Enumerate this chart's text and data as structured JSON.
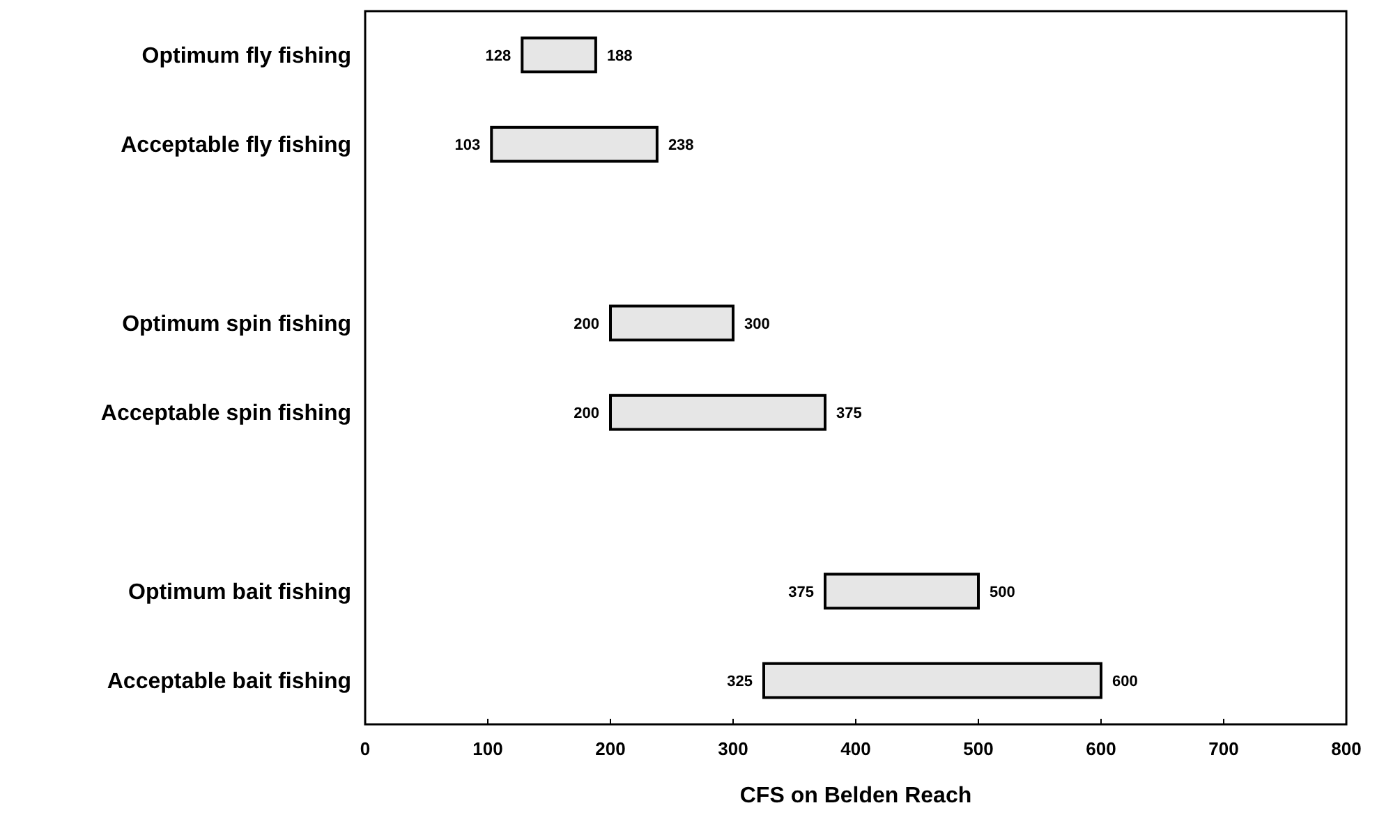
{
  "chart_data": {
    "type": "bar",
    "orientation": "horizontal",
    "xlabel": "CFS on Belden Reach",
    "categories": [
      "Optimum fly fishing",
      "Acceptable fly fishing",
      null,
      "Optimum spin fishing",
      "Acceptable spin fishing",
      null,
      "Optimum bait fishing",
      "Acceptable bait fishing"
    ],
    "base": [
      128,
      103,
      null,
      200,
      200,
      null,
      375,
      325
    ],
    "values": [
      60,
      135,
      null,
      100,
      175,
      null,
      125,
      275
    ],
    "color": "#e6e6e6",
    "xlim": [
      0,
      800
    ],
    "xticks": [
      0,
      100,
      200,
      300,
      400,
      500,
      600,
      700,
      800
    ],
    "grid": false,
    "annotations": [
      {
        "text": "128",
        "x": 128,
        "y": "Optimum fly fishing"
      },
      {
        "text": "188",
        "x": 188,
        "y": "Optimum fly fishing"
      },
      {
        "text": "103",
        "x": 103,
        "y": "Acceptable fly fishing"
      },
      {
        "text": "238",
        "x": 238,
        "y": "Acceptable fly fishing"
      },
      {
        "text": "200",
        "x": 200,
        "y": "Optimum spin fishing"
      },
      {
        "text": "300",
        "x": 300,
        "y": "Optimum spin fishing"
      },
      {
        "text": "200",
        "x": 200,
        "y": "Acceptable spin fishing"
      },
      {
        "text": "375",
        "x": 375,
        "y": "Acceptable spin fishing"
      },
      {
        "text": "375",
        "x": 375,
        "y": "Optimum bait fishing"
      },
      {
        "text": "500",
        "x": 500,
        "y": "Optimum bait fishing"
      },
      {
        "text": "325",
        "x": 325,
        "y": "Acceptable bait fishing"
      },
      {
        "text": "600",
        "x": 600,
        "y": "Acceptable bait fishing"
      }
    ]
  }
}
